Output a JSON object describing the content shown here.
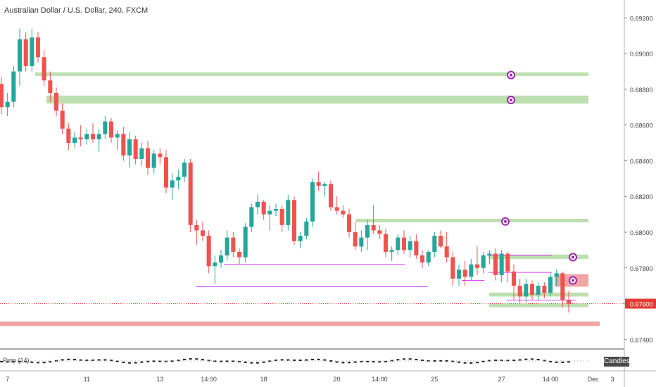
{
  "header": {
    "title": "Australian Dollar / U.S. Dollar, 240, FXCM"
  },
  "indicator": {
    "label": "Prop (14)"
  },
  "toolbar": {
    "candles_label": "Candles"
  },
  "colors": {
    "up": "#26a69a",
    "down": "#ef5350",
    "support_zone": "#b7dca6",
    "resistance_zone": "#ef9a9a",
    "magenta_line": "#e040fb",
    "target_marker": "#9c27b0",
    "price_line": "#e53935"
  },
  "chart_data": {
    "type": "candlestick",
    "symbol": "Australian Dollar / U.S. Dollar",
    "timeframe": "240",
    "source": "FXCM",
    "ylim": [
      0.6735,
      0.693
    ],
    "y_ticks": [
      "0.69200",
      "0.69000",
      "0.68800",
      "0.68600",
      "0.68400",
      "0.68200",
      "0.68000",
      "0.67800",
      "0.67600",
      "0.67400"
    ],
    "x_ticks": [
      "7",
      "11",
      "13",
      "14:00",
      "18",
      "20",
      "14:00",
      "25",
      "27",
      "14:00",
      "Dec",
      "3"
    ],
    "last_price": "0.67600",
    "ohlc": [
      [
        0.6883,
        0.6887,
        0.6866,
        0.687
      ],
      [
        0.687,
        0.6878,
        0.6865,
        0.6873
      ],
      [
        0.6873,
        0.6893,
        0.687,
        0.689
      ],
      [
        0.689,
        0.6914,
        0.6882,
        0.6908
      ],
      [
        0.6908,
        0.6912,
        0.689,
        0.6893
      ],
      [
        0.6893,
        0.6914,
        0.689,
        0.6909
      ],
      [
        0.6909,
        0.6912,
        0.6895,
        0.6898
      ],
      [
        0.6898,
        0.6902,
        0.6882,
        0.6885
      ],
      [
        0.6885,
        0.689,
        0.6873,
        0.6878
      ],
      [
        0.6878,
        0.6881,
        0.6865,
        0.6868
      ],
      [
        0.6868,
        0.6872,
        0.6855,
        0.6858
      ],
      [
        0.6858,
        0.6861,
        0.6846,
        0.685
      ],
      [
        0.685,
        0.6856,
        0.6847,
        0.6853
      ],
      [
        0.6853,
        0.686,
        0.6848,
        0.6852
      ],
      [
        0.6852,
        0.6858,
        0.6849,
        0.6855
      ],
      [
        0.6855,
        0.6861,
        0.685,
        0.6852
      ],
      [
        0.6852,
        0.6858,
        0.6845,
        0.6855
      ],
      [
        0.6855,
        0.6865,
        0.6852,
        0.6862
      ],
      [
        0.6862,
        0.6864,
        0.685,
        0.6853
      ],
      [
        0.6853,
        0.6857,
        0.6846,
        0.6855
      ],
      [
        0.6855,
        0.6859,
        0.684,
        0.6843
      ],
      [
        0.6843,
        0.6856,
        0.6836,
        0.6852
      ],
      [
        0.6852,
        0.6854,
        0.6838,
        0.6841
      ],
      [
        0.6841,
        0.685,
        0.6837,
        0.6847
      ],
      [
        0.6847,
        0.6851,
        0.6832,
        0.6836
      ],
      [
        0.6836,
        0.6846,
        0.6833,
        0.6844
      ],
      [
        0.6844,
        0.6847,
        0.6838,
        0.6842
      ],
      [
        0.6842,
        0.6846,
        0.6822,
        0.6825
      ],
      [
        0.6825,
        0.6833,
        0.6818,
        0.6829
      ],
      [
        0.6829,
        0.6835,
        0.6824,
        0.6831
      ],
      [
        0.6831,
        0.6841,
        0.6828,
        0.6839
      ],
      [
        0.6839,
        0.6841,
        0.68,
        0.6804
      ],
      [
        0.6804,
        0.6807,
        0.6793,
        0.6801
      ],
      [
        0.6801,
        0.6806,
        0.6795,
        0.6798
      ],
      [
        0.6798,
        0.6801,
        0.6777,
        0.6781
      ],
      [
        0.6781,
        0.6787,
        0.6771,
        0.6783
      ],
      [
        0.6783,
        0.679,
        0.678,
        0.6787
      ],
      [
        0.6787,
        0.6801,
        0.6784,
        0.6797
      ],
      [
        0.6797,
        0.68,
        0.6786,
        0.6789
      ],
      [
        0.6789,
        0.6791,
        0.6782,
        0.6786
      ],
      [
        0.6786,
        0.6805,
        0.6783,
        0.6803
      ],
      [
        0.6803,
        0.6816,
        0.68,
        0.6814
      ],
      [
        0.6814,
        0.6821,
        0.681,
        0.6817
      ],
      [
        0.6817,
        0.6818,
        0.6807,
        0.681
      ],
      [
        0.681,
        0.6815,
        0.6801,
        0.6812
      ],
      [
        0.6812,
        0.6816,
        0.6809,
        0.6813
      ],
      [
        0.6813,
        0.6815,
        0.68,
        0.6804
      ],
      [
        0.6804,
        0.6821,
        0.6801,
        0.6818
      ],
      [
        0.6818,
        0.682,
        0.6793,
        0.6795
      ],
      [
        0.6795,
        0.68,
        0.6791,
        0.6798
      ],
      [
        0.6798,
        0.6808,
        0.6796,
        0.6806
      ],
      [
        0.6806,
        0.683,
        0.6803,
        0.6828
      ],
      [
        0.6828,
        0.6834,
        0.6823,
        0.6826
      ],
      [
        0.6826,
        0.6828,
        0.682,
        0.6827
      ],
      [
        0.6827,
        0.6829,
        0.6812,
        0.6814
      ],
      [
        0.6814,
        0.682,
        0.681,
        0.6812
      ],
      [
        0.6812,
        0.6815,
        0.6808,
        0.681
      ],
      [
        0.681,
        0.6813,
        0.6797,
        0.68
      ],
      [
        0.68,
        0.6806,
        0.679,
        0.6792
      ],
      [
        0.6792,
        0.6801,
        0.6789,
        0.6797
      ],
      [
        0.6797,
        0.6807,
        0.679,
        0.6804
      ],
      [
        0.6804,
        0.6815,
        0.6799,
        0.6801
      ],
      [
        0.6801,
        0.6804,
        0.6796,
        0.6799
      ],
      [
        0.6799,
        0.6802,
        0.6786,
        0.6789
      ],
      [
        0.6789,
        0.6792,
        0.6784,
        0.679
      ],
      [
        0.679,
        0.6799,
        0.6787,
        0.6797
      ],
      [
        0.6797,
        0.6801,
        0.6788,
        0.679
      ],
      [
        0.679,
        0.6798,
        0.6786,
        0.6795
      ],
      [
        0.6795,
        0.6799,
        0.6785,
        0.6787
      ],
      [
        0.6787,
        0.679,
        0.678,
        0.6783
      ],
      [
        0.6783,
        0.679,
        0.6781,
        0.6789
      ],
      [
        0.6789,
        0.68,
        0.6786,
        0.6798
      ],
      [
        0.6798,
        0.6801,
        0.6791,
        0.6792
      ],
      [
        0.6792,
        0.68,
        0.6783,
        0.6786
      ],
      [
        0.6786,
        0.6789,
        0.677,
        0.6774
      ],
      [
        0.6774,
        0.6782,
        0.677,
        0.6779
      ],
      [
        0.6779,
        0.6784,
        0.677,
        0.6775
      ],
      [
        0.6775,
        0.6785,
        0.6773,
        0.6782
      ],
      [
        0.6782,
        0.6792,
        0.6776,
        0.678
      ],
      [
        0.678,
        0.6789,
        0.6777,
        0.6787
      ],
      [
        0.6787,
        0.679,
        0.6782,
        0.6788
      ],
      [
        0.6788,
        0.6791,
        0.6773,
        0.6776
      ],
      [
        0.6776,
        0.679,
        0.6772,
        0.6788
      ],
      [
        0.6788,
        0.6789,
        0.6772,
        0.6778
      ],
      [
        0.6778,
        0.6782,
        0.6762,
        0.677
      ],
      [
        0.677,
        0.6774,
        0.676,
        0.6764
      ],
      [
        0.6764,
        0.6774,
        0.6761,
        0.6771
      ],
      [
        0.6771,
        0.6773,
        0.6762,
        0.6765
      ],
      [
        0.6765,
        0.6772,
        0.6762,
        0.677
      ],
      [
        0.677,
        0.6772,
        0.6763,
        0.6766
      ],
      [
        0.6766,
        0.6777,
        0.6764,
        0.6775
      ],
      [
        0.6775,
        0.6779,
        0.677,
        0.6777
      ],
      [
        0.6777,
        0.6778,
        0.6758,
        0.6762
      ],
      [
        0.6762,
        0.6767,
        0.6755,
        0.676
      ]
    ],
    "zones": [
      {
        "kind": "support",
        "from": 0.68875,
        "to": 0.68895
      },
      {
        "kind": "support",
        "from": 0.6872,
        "to": 0.68765
      },
      {
        "kind": "support",
        "from": 0.68055,
        "to": 0.68075
      },
      {
        "kind": "support",
        "from": 0.6785,
        "to": 0.67875
      },
      {
        "kind": "resistance",
        "from": 0.67695,
        "to": 0.67765
      },
      {
        "kind": "support",
        "from": 0.6764,
        "to": 0.67662
      },
      {
        "kind": "support",
        "from": 0.6758,
        "to": 0.676
      },
      {
        "kind": "resistance",
        "from": 0.67475,
        "to": 0.675
      }
    ],
    "lines": [
      {
        "y": 0.6782,
        "color": "magenta"
      },
      {
        "y": 0.67695,
        "color": "magenta"
      },
      {
        "y": 0.6787,
        "color": "magenta"
      },
      {
        "y": 0.67775,
        "color": "magenta"
      },
      {
        "y": 0.6773,
        "color": "magenta"
      },
      {
        "y": 0.6762,
        "color": "magenta"
      }
    ],
    "targets": [
      0.6888,
      0.6874,
      0.6806,
      0.6786,
      0.6773
    ]
  }
}
